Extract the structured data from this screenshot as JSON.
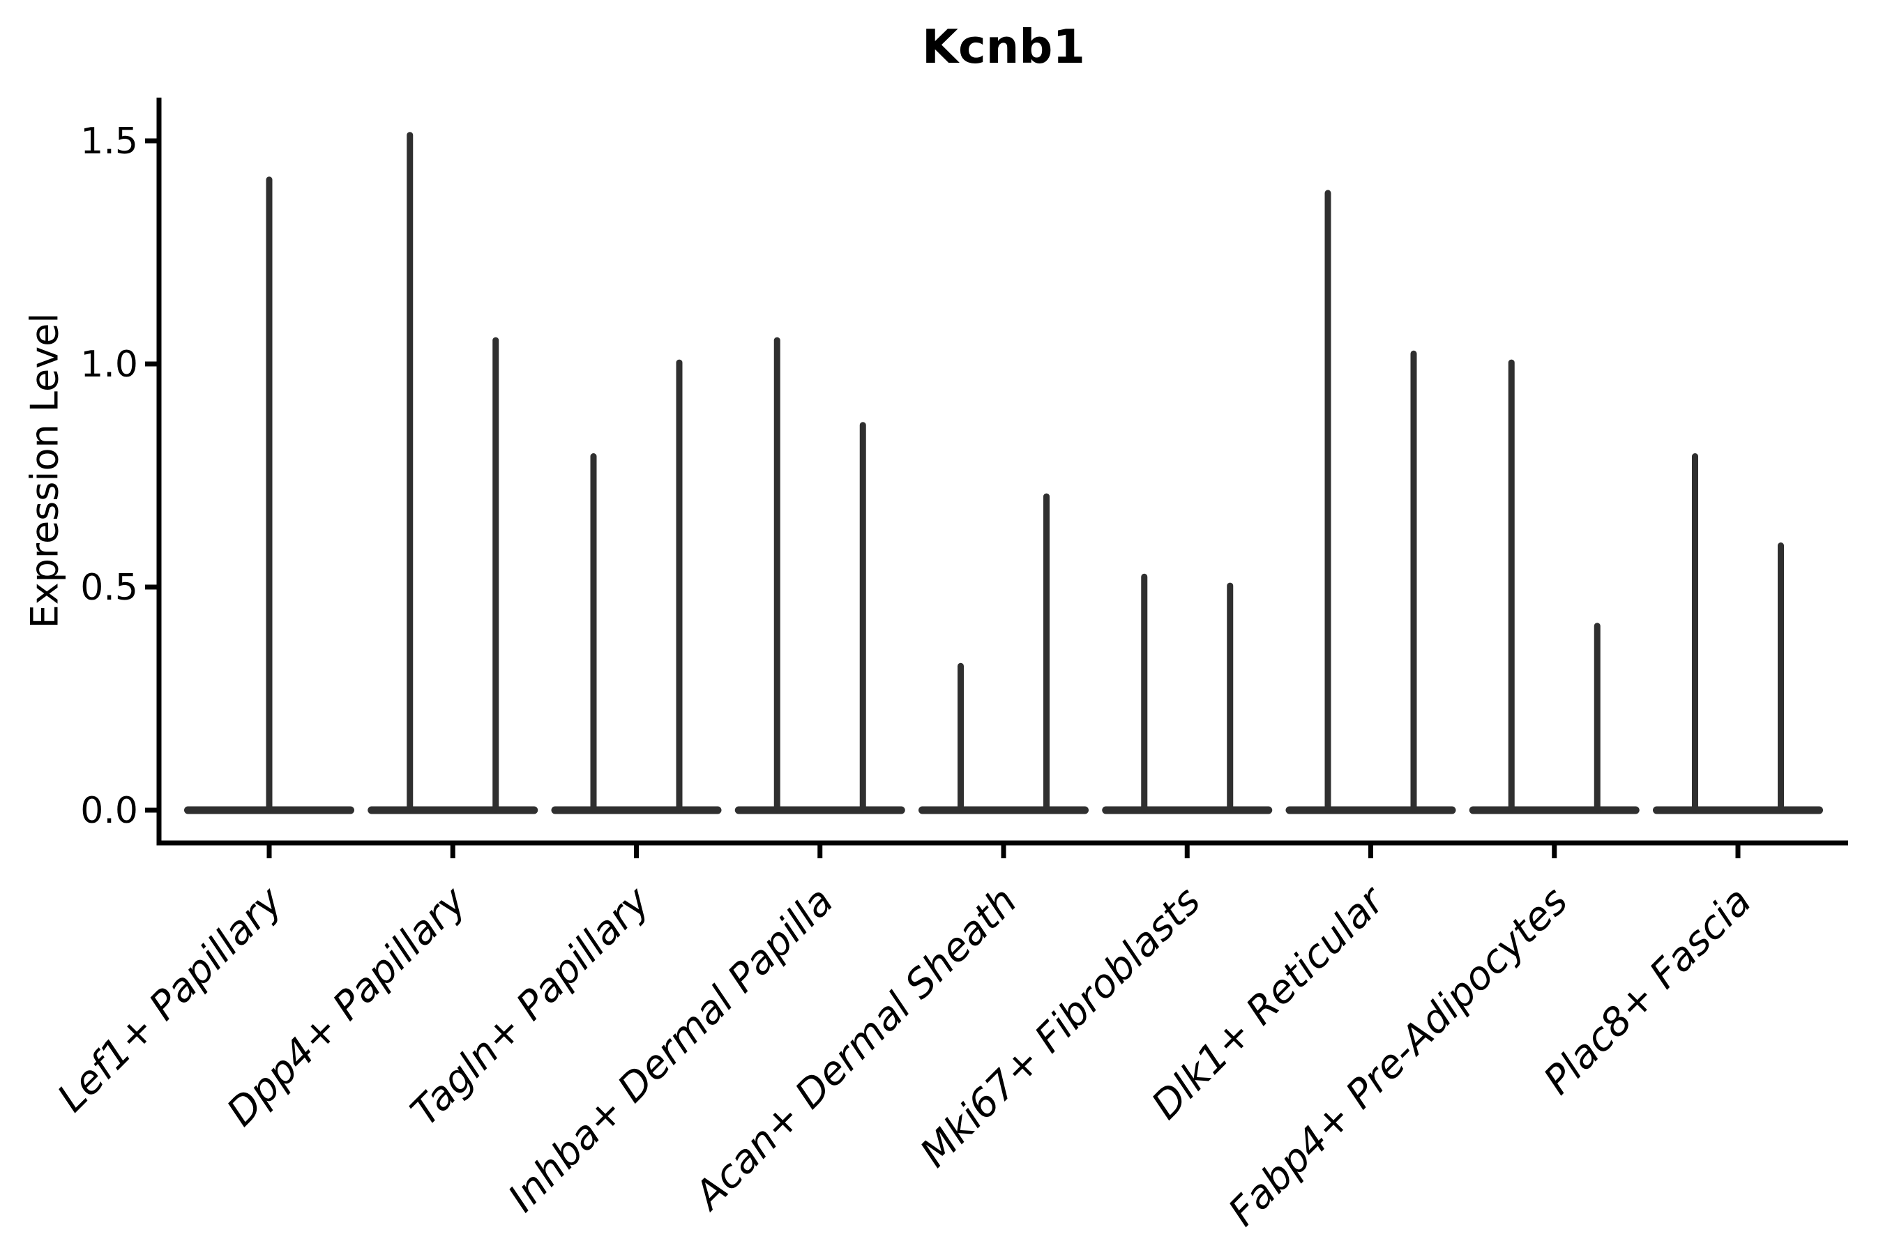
{
  "chart_data": {
    "type": "violin",
    "title": "Kcnb1",
    "xlabel": "",
    "ylabel": "Expression Level",
    "ytick_labels": [
      "0.0",
      "0.5",
      "1.0",
      "1.5"
    ],
    "ytick_values": [
      0.0,
      0.5,
      1.0,
      1.5
    ],
    "ylim": [
      -0.07,
      1.6
    ],
    "grid": false,
    "legend": "none",
    "description": "Violin plot of Kcnb1 expression; each cell-type category shows a wide flat density at 0 with one or two thin spikes of rare high-expressing cells",
    "categories": [
      "Lef1+ Papillary",
      "Dpp4+ Papillary",
      "Tagln+ Papillary",
      "Inhba+ Dermal Papilla",
      "Acan+ Dermal Sheath",
      "Mki67+ Fibroblasts",
      "Dlk1+ Reticular",
      "Fabp4+ Pre-Adipocytes",
      "Plac8+ Fascia"
    ],
    "series": [
      {
        "category": "Lef1+ Papillary",
        "spike_maxima": [
          1.42
        ]
      },
      {
        "category": "Dpp4+ Papillary",
        "spike_maxima": [
          1.52,
          1.06
        ]
      },
      {
        "category": "Tagln+ Papillary",
        "spike_maxima": [
          0.8,
          1.01
        ]
      },
      {
        "category": "Inhba+ Dermal Papilla",
        "spike_maxima": [
          1.06,
          0.87
        ]
      },
      {
        "category": "Acan+ Dermal Sheath",
        "spike_maxima": [
          0.33,
          0.71
        ]
      },
      {
        "category": "Mki67+ Fibroblasts",
        "spike_maxima": [
          0.53,
          0.51
        ]
      },
      {
        "category": "Dlk1+ Reticular",
        "spike_maxima": [
          1.39,
          1.03
        ]
      },
      {
        "category": "Fabp4+ Pre-Adipocytes",
        "spike_maxima": [
          1.01,
          0.42
        ]
      },
      {
        "category": "Plac8+ Fascia",
        "spike_maxima": [
          0.8,
          0.6
        ]
      }
    ],
    "colors": {
      "violin": "#2f2f2f",
      "axis": "#000000",
      "text": "#000000",
      "background": "#ffffff"
    }
  }
}
